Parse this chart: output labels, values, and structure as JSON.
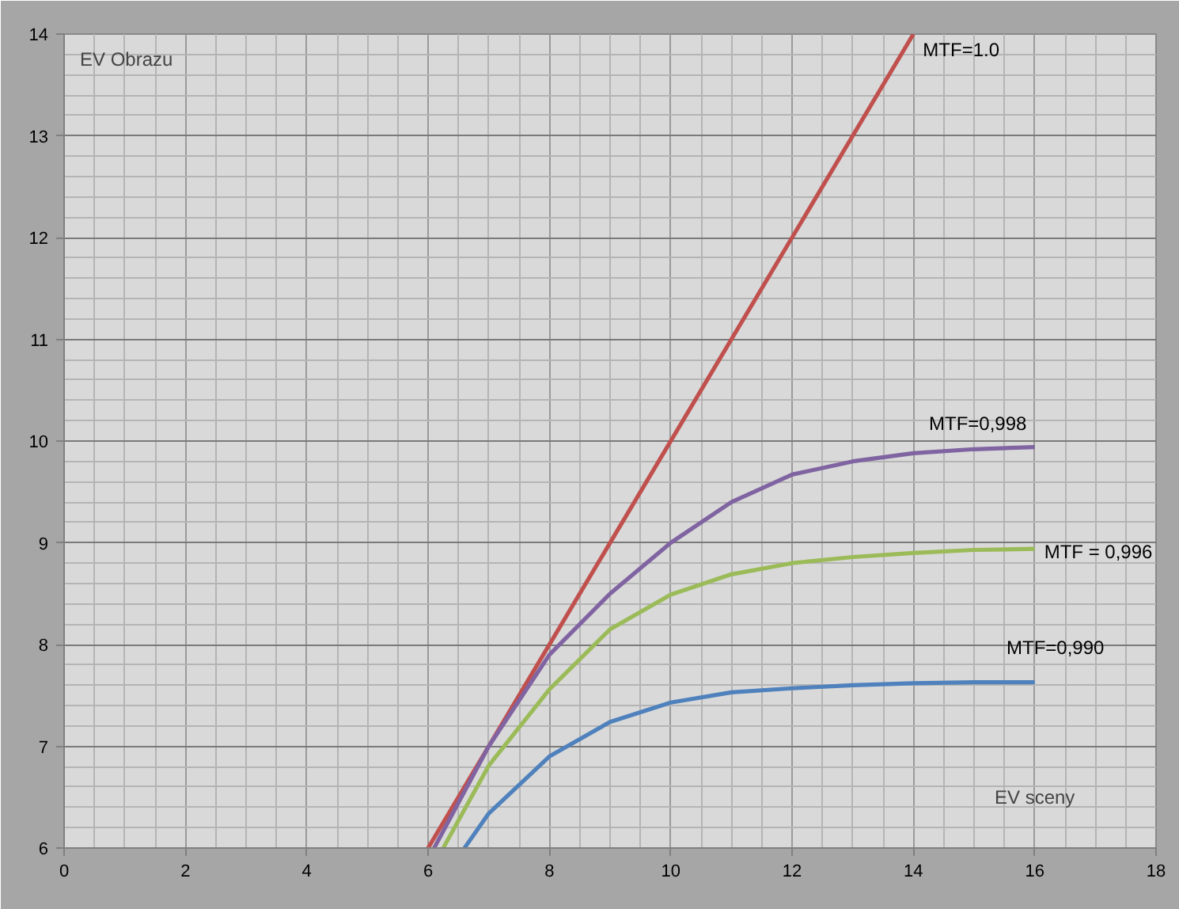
{
  "chart_data": {
    "type": "line",
    "xlabel": "EV sceny",
    "ylabel": "EV Obrazu",
    "xlim": [
      0,
      18
    ],
    "ylim": [
      6,
      14
    ],
    "xticks": [
      0,
      2,
      4,
      6,
      8,
      10,
      12,
      14,
      16,
      18
    ],
    "yticks": [
      6,
      7,
      8,
      9,
      10,
      11,
      12,
      13,
      14
    ],
    "grid": true,
    "series": [
      {
        "name": "MTF=1.0",
        "color": "#c0504d",
        "x": [
          6,
          14
        ],
        "values": [
          6,
          14
        ]
      },
      {
        "name": "MTF=0,998",
        "color": "#8064a2",
        "x": [
          6.1,
          7,
          8,
          9,
          10,
          11,
          12,
          13,
          14,
          15,
          16
        ],
        "values": [
          6,
          7.0,
          7.9,
          8.5,
          9.0,
          9.4,
          9.67,
          9.8,
          9.88,
          9.92,
          9.94
        ]
      },
      {
        "name": "MTF = 0,996",
        "color": "#9bbb59",
        "x": [
          6.25,
          7,
          8,
          9,
          10,
          11,
          12,
          13,
          14,
          15,
          16
        ],
        "values": [
          6,
          6.81,
          7.56,
          8.15,
          8.49,
          8.69,
          8.8,
          8.86,
          8.9,
          8.93,
          8.94
        ]
      },
      {
        "name": "MTF=0,990",
        "color": "#4f81bd",
        "x": [
          6.6,
          7,
          8,
          9,
          10,
          11,
          12,
          13,
          14,
          15,
          16
        ],
        "values": [
          6,
          6.34,
          6.9,
          7.24,
          7.43,
          7.53,
          7.57,
          7.6,
          7.62,
          7.63,
          7.63
        ]
      }
    ]
  }
}
